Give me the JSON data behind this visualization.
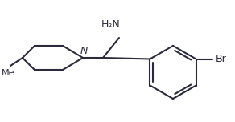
{
  "bg_color": "#ffffff",
  "line_color": "#2a2a3a",
  "line_width": 1.5,
  "font_size_label": 9,
  "font_size_small": 8,
  "figsize": [
    2.92,
    1.52
  ],
  "dpi": 100,
  "NH2_label": "H₂N",
  "N_label": "N",
  "Br_label": "Br"
}
